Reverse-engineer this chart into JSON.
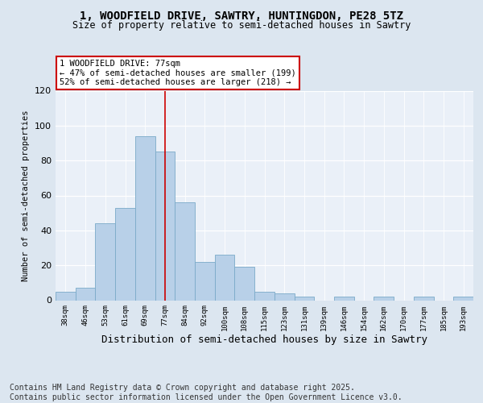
{
  "title_line1": "1, WOODFIELD DRIVE, SAWTRY, HUNTINGDON, PE28 5TZ",
  "title_line2": "Size of property relative to semi-detached houses in Sawtry",
  "xlabel": "Distribution of semi-detached houses by size in Sawtry",
  "ylabel": "Number of semi-detached properties",
  "bins": [
    "38sqm",
    "46sqm",
    "53sqm",
    "61sqm",
    "69sqm",
    "77sqm",
    "84sqm",
    "92sqm",
    "100sqm",
    "108sqm",
    "115sqm",
    "123sqm",
    "131sqm",
    "139sqm",
    "146sqm",
    "154sqm",
    "162sqm",
    "170sqm",
    "177sqm",
    "185sqm",
    "193sqm"
  ],
  "values": [
    5,
    7,
    44,
    53,
    94,
    85,
    56,
    22,
    26,
    19,
    5,
    4,
    2,
    0,
    2,
    0,
    2,
    0,
    2,
    0,
    2
  ],
  "bar_color": "#b8d0e8",
  "bar_edge_color": "#7aaac8",
  "vline_x": 5,
  "vline_color": "#cc0000",
  "annotation_text": "1 WOODFIELD DRIVE: 77sqm\n← 47% of semi-detached houses are smaller (199)\n52% of semi-detached houses are larger (218) →",
  "annotation_box_color": "#ffffff",
  "annotation_box_edge_color": "#cc0000",
  "ylim": [
    0,
    120
  ],
  "yticks": [
    0,
    20,
    40,
    60,
    80,
    100,
    120
  ],
  "background_color": "#dce6f0",
  "plot_bg_color": "#eaf0f8",
  "footer_text": "Contains HM Land Registry data © Crown copyright and database right 2025.\nContains public sector information licensed under the Open Government Licence v3.0.",
  "footer_fontsize": 7.0,
  "title_fontsize1": 10,
  "title_fontsize2": 8.5
}
